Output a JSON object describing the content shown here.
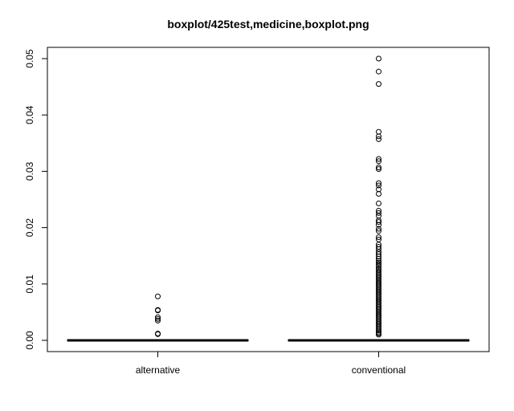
{
  "chart_data": {
    "type": "boxplot",
    "title": "boxplot/425test,medicine,boxplot.png",
    "xlabel": "",
    "ylabel": "",
    "categories": [
      "alternative",
      "conventional"
    ],
    "ylim": [
      -0.002,
      0.052
    ],
    "yticks": [
      0.0,
      0.01,
      0.02,
      0.03,
      0.04,
      0.05
    ],
    "ytick_labels": [
      "0.00",
      "0.01",
      "0.02",
      "0.03",
      "0.04",
      "0.05"
    ],
    "grid": false,
    "boxes": [
      {
        "category": "alternative",
        "min": 0,
        "q1": 0,
        "median": 0,
        "q3": 0,
        "max": 0,
        "outliers": [
          0.0078,
          0.0054,
          0.0053,
          0.0041,
          0.0038,
          0.0035,
          0.0012,
          0.0011
        ]
      },
      {
        "category": "conventional",
        "min": 0,
        "q1": 0,
        "median": 0,
        "q3": 0,
        "max": 0,
        "outliers": [
          0.05,
          0.0477,
          0.0455,
          0.037,
          0.0362,
          0.0357,
          0.0322,
          0.0318,
          0.0307,
          0.0304,
          0.0279,
          0.0275,
          0.0268,
          0.026,
          0.0243,
          0.023,
          0.0226,
          0.0221,
          0.0213,
          0.021,
          0.0205,
          0.0198,
          0.0194,
          0.0183,
          0.0179,
          0.017,
          0.0166,
          0.0162,
          0.0157,
          0.0153,
          0.0149,
          0.0145,
          0.0141,
          0.0138,
          0.0135,
          0.0132,
          0.0128,
          0.0125,
          0.0122,
          0.0119,
          0.0116,
          0.0113,
          0.011,
          0.0107,
          0.0104,
          0.0101,
          0.0098,
          0.0095,
          0.0092,
          0.0089,
          0.0086,
          0.0083,
          0.008,
          0.0077,
          0.0074,
          0.0071,
          0.0068,
          0.0065,
          0.0062,
          0.0059,
          0.0056,
          0.0053,
          0.005,
          0.0047,
          0.0044,
          0.0041,
          0.0038,
          0.0035,
          0.0032,
          0.0029,
          0.0026,
          0.0023,
          0.002,
          0.0017,
          0.0014,
          0.0012,
          0.001
        ]
      }
    ]
  }
}
